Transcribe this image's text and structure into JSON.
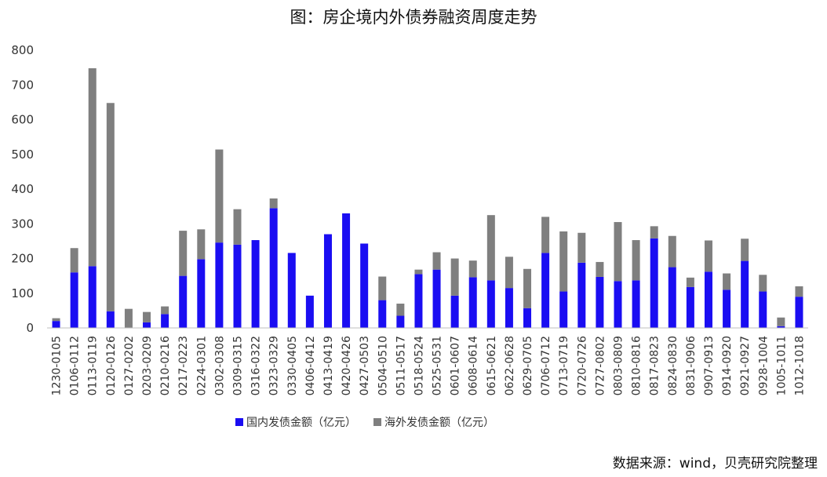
{
  "chart_data": {
    "type": "bar",
    "stacked": true,
    "title": "图：房企境内外债券融资周度走势",
    "ylim": [
      0,
      800
    ],
    "yticks": [
      0,
      100,
      200,
      300,
      400,
      500,
      600,
      700,
      800
    ],
    "grid": false,
    "legend_position": "bottom",
    "categories": [
      "1230-0105",
      "0106-0112",
      "0113-0119",
      "0120-0126",
      "0127-0202",
      "0203-0209",
      "0210-0216",
      "0217-0223",
      "0224-0301",
      "0302-0308",
      "0309-0315",
      "0316-0322",
      "0323-0329",
      "0330-0405",
      "0406-0412",
      "0413-0419",
      "0420-0426",
      "0427-0503",
      "0504-0510",
      "0511-0517",
      "0518-0524",
      "0525-0531",
      "0601-0607",
      "0608-0614",
      "0615-0621",
      "0622-0628",
      "0629-0705",
      "0706-0712",
      "0713-0719",
      "0720-0726",
      "0727-0802",
      "0803-0809",
      "0810-0816",
      "0817-0823",
      "0824-0830",
      "0831-0906",
      "0907-0913",
      "0914-0920",
      "0921-0927",
      "0928-1004",
      "1005-1011",
      "1012-1018"
    ],
    "series": [
      {
        "name": "国内发债金额（亿元）",
        "color": "#1a0df2",
        "values": [
          20,
          160,
          178,
          48,
          0,
          16,
          40,
          150,
          198,
          246,
          240,
          253,
          345,
          216,
          93,
          270,
          330,
          243,
          80,
          35,
          155,
          168,
          93,
          146,
          137,
          115,
          57,
          216,
          105,
          188,
          147,
          135,
          137,
          258,
          175,
          118,
          162,
          110,
          193,
          105,
          5,
          90
        ]
      },
      {
        "name": "海外发债金额（亿元）",
        "color": "#7f7f7f",
        "values": [
          8,
          70,
          570,
          600,
          55,
          30,
          22,
          130,
          86,
          268,
          102,
          0,
          28,
          0,
          0,
          0,
          0,
          0,
          68,
          35,
          13,
          50,
          107,
          48,
          188,
          90,
          113,
          104,
          173,
          86,
          43,
          170,
          116,
          35,
          90,
          27,
          90,
          47,
          64,
          48,
          25,
          30
        ]
      }
    ]
  },
  "source_note": "数据来源：wind，贝壳研究院整理"
}
